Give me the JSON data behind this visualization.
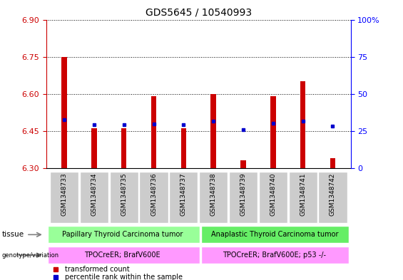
{
  "title": "GDS5645 / 10540993",
  "samples": [
    "GSM1348733",
    "GSM1348734",
    "GSM1348735",
    "GSM1348736",
    "GSM1348737",
    "GSM1348738",
    "GSM1348739",
    "GSM1348740",
    "GSM1348741",
    "GSM1348742"
  ],
  "red_values": [
    6.75,
    6.46,
    6.46,
    6.59,
    6.46,
    6.6,
    6.33,
    6.59,
    6.65,
    6.34
  ],
  "blue_values": [
    6.495,
    6.475,
    6.475,
    6.478,
    6.475,
    6.49,
    6.455,
    6.48,
    6.49,
    6.47
  ],
  "ymin": 6.3,
  "ymax": 6.9,
  "yticks": [
    6.3,
    6.45,
    6.6,
    6.75,
    6.9
  ],
  "y2min": 0,
  "y2max": 100,
  "y2ticks": [
    0,
    25,
    50,
    75,
    100
  ],
  "bar_width": 0.18,
  "red_color": "#cc0000",
  "blue_color": "#0000cc",
  "tissue_group1_label": "Papillary Thyroid Carcinoma tumor",
  "tissue_group2_label": "Anaplastic Thyroid Carcinoma tumor",
  "genotype_group1_label": "TPOCreER; BrafV600E",
  "genotype_group2_label": "TPOCreER; BrafV600E; p53 -/-",
  "tissue_color1": "#99ff99",
  "tissue_color2": "#66ee66",
  "genotype_color": "#ff99ff",
  "legend_red": "transformed count",
  "legend_blue": "percentile rank within the sample",
  "group1_size": 5,
  "group2_size": 5,
  "tick_bg_color": "#cccccc"
}
